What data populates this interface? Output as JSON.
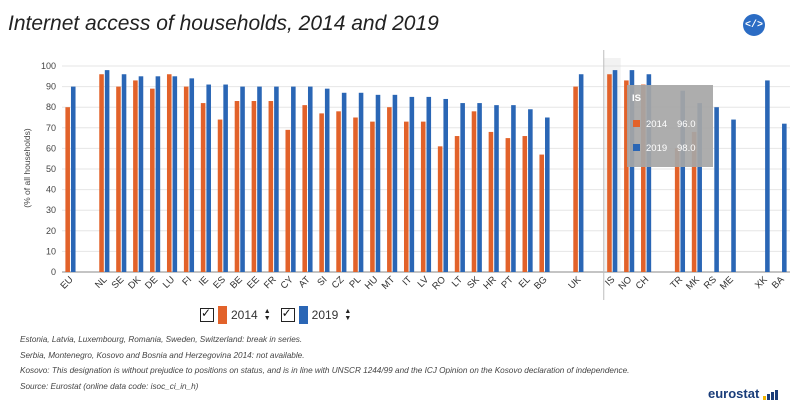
{
  "title": "Internet access of households, 2014 and 2019",
  "embed_icon": "code-icon",
  "colors": {
    "s2014": "#e2622a",
    "s2019": "#2a66b5",
    "tooltip_bg": "#a6a6a6",
    "separator": "#bdbdbd"
  },
  "legend": {
    "items": [
      {
        "label": "2014"
      },
      {
        "label": "2019"
      }
    ]
  },
  "chart_data": {
    "type": "bar",
    "ylabel": "(% of all households)",
    "ylim": [
      0,
      100
    ],
    "yticks": [
      0,
      10,
      20,
      30,
      40,
      50,
      60,
      70,
      80,
      90,
      100
    ],
    "categories": [
      "EU",
      "",
      "NL",
      "SE",
      "DK",
      "DE",
      "LU",
      "FI",
      "IE",
      "ES",
      "BE",
      "EE",
      "FR",
      "CY",
      "AT",
      "SI",
      "CZ",
      "PL",
      "HU",
      "MT",
      "IT",
      "LV",
      "RO",
      "LT",
      "SK",
      "HR",
      "PT",
      "EL",
      "BG",
      "",
      "UK",
      "",
      "IS",
      "NO",
      "CH",
      "",
      "TR",
      "MK",
      "RS",
      "ME",
      "",
      "XK",
      "BA"
    ],
    "series": [
      {
        "name": "2014",
        "values": [
          80,
          null,
          96,
          90,
          93,
          89,
          96,
          90,
          82,
          74,
          83,
          83,
          83,
          69,
          81,
          77,
          78,
          75,
          73,
          80,
          73,
          73,
          61,
          66,
          78,
          68,
          65,
          66,
          57,
          null,
          90,
          null,
          96,
          93,
          91,
          null,
          60,
          68,
          null,
          null,
          null,
          null,
          null
        ]
      },
      {
        "name": "2019",
        "values": [
          90,
          null,
          98,
          96,
          95,
          95,
          95,
          94,
          91,
          91,
          90,
          90,
          90,
          90,
          90,
          89,
          87,
          87,
          86,
          86,
          85,
          85,
          84,
          82,
          82,
          81,
          81,
          79,
          75,
          null,
          96,
          null,
          98,
          98,
          96,
          null,
          88,
          82,
          80,
          74,
          null,
          93,
          72
        ]
      }
    ],
    "highlight_category": "IS",
    "grid": true,
    "legend_position": "bottom-left"
  },
  "tooltip": {
    "title": "IS",
    "rows": [
      {
        "label": "2014",
        "value": "96.0"
      },
      {
        "label": "2019",
        "value": "98.0"
      }
    ]
  },
  "notes": [
    "Estonia, Latvia, Luxembourg, Romania, Sweden, Switzerland: break in series.",
    "Serbia, Montenegro, Kosovo and Bosnia and Herzegovina 2014: not available.",
    "Kosovo: This designation is without prejudice to positions on status, and is in line with UNSCR 1244/99 and the ICJ Opinion on the Kosovo declaration of independence.",
    "Source: Eurostat (online data code: isoc_ci_in_h)"
  ],
  "logo": "eurostat"
}
